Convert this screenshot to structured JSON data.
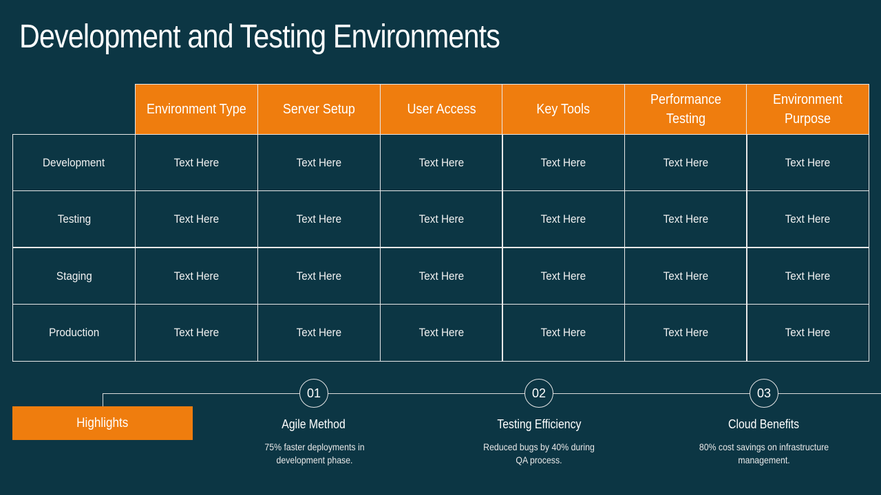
{
  "title": "Development and Testing Environments",
  "table": {
    "headers": [
      "Environment Type",
      "Server Setup",
      "User Access",
      "Key Tools",
      "Performance Testing",
      "Environment Purpose"
    ],
    "rows": [
      {
        "label": "Development",
        "cells": [
          "Text Here",
          "Text Here",
          "Text Here",
          "Text Here",
          "Text Here",
          "Text Here"
        ]
      },
      {
        "label": "Testing",
        "cells": [
          "Text Here",
          "Text Here",
          "Text Here",
          "Text Here",
          "Text Here",
          "Text Here"
        ]
      },
      {
        "label": "Staging",
        "cells": [
          "Text Here",
          "Text Here",
          "Text Here",
          "Text Here",
          "Text Here",
          "Text Here"
        ]
      },
      {
        "label": "Production",
        "cells": [
          "Text Here",
          "Text Here",
          "Text Here",
          "Text Here",
          "Text Here",
          "Text Here"
        ]
      }
    ]
  },
  "highlights": {
    "label": "Highlights",
    "steps": [
      {
        "number": "01",
        "title": "Agile Method",
        "description": "75% faster deployments in development phase."
      },
      {
        "number": "02",
        "title": "Testing Efficiency",
        "description": "Reduced bugs by 40% during QA process."
      },
      {
        "number": "03",
        "title": "Cloud Benefits",
        "description": "80% cost savings on infrastructure management."
      }
    ]
  },
  "colors": {
    "background": "#0c3644",
    "accent": "#ef7d0e",
    "grid_line": "#e9e9e9"
  }
}
